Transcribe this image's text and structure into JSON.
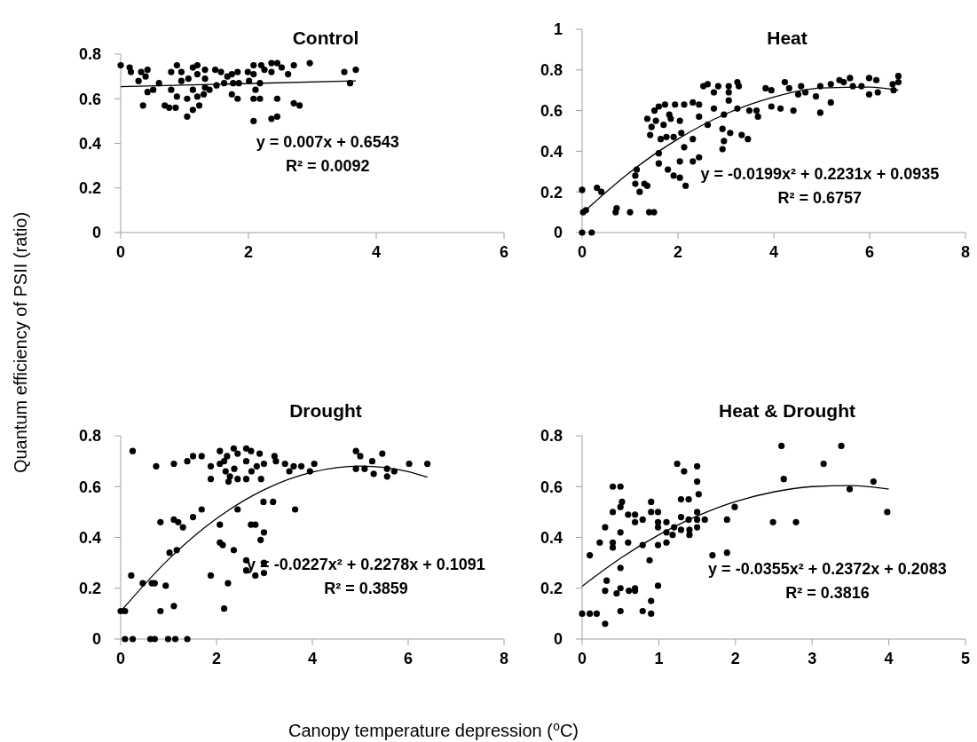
{
  "chart_data": [
    {
      "type": "scatter",
      "title": "Control",
      "ylabel": "Quantum efficiency of PSII (ratio)",
      "xlim": [
        0,
        6
      ],
      "xticks": [
        0,
        2,
        4,
        6
      ],
      "ylim": [
        0,
        0.8
      ],
      "yticks": [
        0,
        0.2,
        0.4,
        0.6,
        0.8
      ],
      "annotations": [
        "y = 0.007x + 0.6543",
        "R² = 0.0092"
      ],
      "series": [
        {
          "marker": "circle",
          "color": "#000000",
          "x": [
            0,
            0.14,
            0.16,
            0.32,
            0.42,
            0.28,
            0.39,
            0.35,
            0.42,
            0.51,
            0.6,
            0.69,
            0.76,
            0.86,
            0.79,
            0.88,
            0.79,
            0.88,
            0.95,
            0.95,
            1.04,
            1.04,
            1.06,
            1.13,
            1.2,
            1.13,
            1.2,
            1.13,
            1.23,
            1.2,
            1.32,
            1.32,
            1.32,
            1.3,
            1.39,
            1.48,
            1.57,
            1.5,
            1.62,
            1.67,
            1.74,
            1.83,
            1.83,
            1.74,
            1.85,
            1.76,
            1.99,
            2.01,
            2.08,
            2.08,
            2.11,
            2.08,
            2.18,
            2.08,
            2.18,
            2.2,
            2.25,
            2.36,
            2.36,
            2.45,
            2.36,
            2.45,
            2.52,
            2.45,
            2.62,
            2.71,
            2.71,
            2.8,
            2.96,
            3.5,
            3.59,
            3.68
          ],
          "values": [
            0.75,
            0.74,
            0.72,
            0.72,
            0.73,
            0.68,
            0.7,
            0.57,
            0.63,
            0.64,
            0.67,
            0.57,
            0.56,
            0.56,
            0.72,
            0.75,
            0.64,
            0.61,
            0.72,
            0.68,
            0.52,
            0.6,
            0.69,
            0.74,
            0.75,
            0.64,
            0.71,
            0.55,
            0.57,
            0.61,
            0.73,
            0.69,
            0.65,
            0.62,
            0.64,
            0.73,
            0.72,
            0.66,
            0.67,
            0.7,
            0.62,
            0.6,
            0.72,
            0.71,
            0.67,
            0.67,
            0.72,
            0.68,
            0.75,
            0.71,
            0.64,
            0.5,
            0.6,
            0.6,
            0.67,
            0.75,
            0.73,
            0.72,
            0.51,
            0.52,
            0.76,
            0.76,
            0.74,
            0.6,
            0.71,
            0.75,
            0.58,
            0.57,
            0.76,
            0.72,
            0.67,
            0.73
          ]
        },
        {
          "type": "line",
          "color": "#000000",
          "x": [
            0,
            3.68
          ],
          "values": [
            0.654,
            0.68
          ]
        }
      ]
    },
    {
      "type": "scatter",
      "title": "Heat",
      "xlim": [
        0,
        8
      ],
      "xticks": [
        0,
        2,
        4,
        6,
        8
      ],
      "ylim": [
        0,
        1
      ],
      "yticks": [
        0,
        0.2,
        0.4,
        0.6,
        0.8,
        1
      ],
      "annotations": [
        "y = -0.0199x² + 0.2231x + 0.0935",
        "R² = 0.6757"
      ],
      "series": [
        {
          "marker": "circle",
          "color": "#000000",
          "x": [
            0,
            0.31,
            0.4,
            0.02,
            0.08,
            0,
            0.2,
            0.7,
            0.72,
            1.0,
            1.4,
            1.5,
            1.2,
            1.11,
            1.14,
            1.11,
            1.3,
            1.36,
            1.36,
            1.45,
            1.42,
            1.51,
            1.54,
            1.6,
            1.64,
            1.6,
            1.6,
            1.73,
            1.7,
            1.76,
            1.82,
            1.85,
            1.79,
            1.91,
            1.91,
            1.94,
            2.04,
            2.04,
            2.04,
            2.07,
            2.13,
            2.13,
            2.16,
            2.31,
            2.31,
            2.31,
            2.44,
            2.44,
            2.44,
            2.53,
            2.62,
            2.62,
            2.75,
            2.75,
            2.84,
            2.93,
            2.96,
            2.93,
            2.96,
            3.06,
            3.06,
            3.06,
            3.09,
            3.24,
            3.27,
            3.24,
            3.33,
            3.46,
            3.49,
            3.64,
            3.67,
            3.83,
            3.95,
            3.95,
            4.14,
            4.23,
            4.32,
            4.41,
            4.51,
            4.57,
            4.66,
            4.88,
            4.97,
            4.97,
            5.19,
            5.19,
            5.37,
            5.46,
            5.59,
            5.65,
            5.83,
            5.99,
            6.14,
            6.17,
            5.99,
            6.48,
            6.6,
            6.6,
            6.5
          ],
          "values": [
            0.21,
            0.22,
            0.2,
            0.1,
            0.11,
            0,
            0,
            0.1,
            0.12,
            0.1,
            0.1,
            0.1,
            0.2,
            0.28,
            0.31,
            0.24,
            0.24,
            0.23,
            0.56,
            0.52,
            0.48,
            0.6,
            0.55,
            0.62,
            0.46,
            0.34,
            0.39,
            0.63,
            0.53,
            0.47,
            0.58,
            0.56,
            0.31,
            0.47,
            0.28,
            0.63,
            0.55,
            0.27,
            0.35,
            0.49,
            0.63,
            0.42,
            0.23,
            0.64,
            0.46,
            0.35,
            0.37,
            0.63,
            0.57,
            0.72,
            0.73,
            0.53,
            0.61,
            0.69,
            0.72,
            0.51,
            0.45,
            0.41,
            0.58,
            0.72,
            0.69,
            0.65,
            0.49,
            0.74,
            0.72,
            0.61,
            0.48,
            0.46,
            0.6,
            0.6,
            0.57,
            0.71,
            0.7,
            0.62,
            0.61,
            0.74,
            0.71,
            0.6,
            0.68,
            0.72,
            0.69,
            0.67,
            0.59,
            0.72,
            0.64,
            0.73,
            0.75,
            0.74,
            0.76,
            0.72,
            0.72,
            0.76,
            0.75,
            0.69,
            0.68,
            0.73,
            0.74,
            0.77,
            0.7
          ]
        },
        {
          "type": "line",
          "color": "#000000",
          "x": [
            0,
            1,
            2,
            3,
            4,
            5,
            6,
            6.6
          ],
          "values": [
            0.094,
            0.297,
            0.46,
            0.584,
            0.667,
            0.711,
            0.716,
            0.7
          ]
        }
      ]
    },
    {
      "type": "scatter",
      "title": "Drought",
      "xlabel": "Canopy temperature depression (⁰C)",
      "xlim": [
        0,
        8
      ],
      "xticks": [
        0,
        2,
        4,
        6,
        8
      ],
      "ylim": [
        0,
        0.8
      ],
      "yticks": [
        0,
        0.2,
        0.4,
        0.6,
        0.8
      ],
      "annotations": [
        "y = -0.0227x² + 0.2278x + 0.1091",
        "R² = 0.3859"
      ],
      "series": [
        {
          "marker": "circle",
          "color": "#000000",
          "x": [
            0,
            0.09,
            0.25,
            0.22,
            0.46,
            0.65,
            0.71,
            0.74,
            0.83,
            0.83,
            0.94,
            1.02,
            1.17,
            1.11,
            1.11,
            1.2,
            1.11,
            1.3,
            1.39,
            1.51,
            1.69,
            1.51,
            1.69,
            1.88,
            1.88,
            1.88,
            2.07,
            2.07,
            2.07,
            2.07,
            2.13,
            2.16,
            2.24,
            2.16,
            2.22,
            2.19,
            2.25,
            2.28,
            2.36,
            2.44,
            2.37,
            2.44,
            2.44,
            2.36,
            2.62,
            2.62,
            2.62,
            2.62,
            2.62,
            2.81,
            2.72,
            2.73,
            2.84,
            2.72,
            2.81,
            2.9,
            2.93,
            2.99,
            2.92,
            2.99,
            2.98,
            2.99,
            2.99,
            3.18,
            3.21,
            3.24,
            3.43,
            3.52,
            3.64,
            3.61,
            3.77,
            3.95,
            4.04,
            4.91,
            5.0,
            4.91,
            5.09,
            5.25,
            5.28,
            5.46,
            5.56,
            5.56,
            5.71,
            6.02,
            6.4,
            0.09,
            0.25,
            0.62,
            0.71,
            0.99,
            1.14,
            1.39
          ],
          "values": [
            0.11,
            0.11,
            0.74,
            0.25,
            0.22,
            0.22,
            0.22,
            0.68,
            0.46,
            0.11,
            0.21,
            0.34,
            0.35,
            0.69,
            0.47,
            0.46,
            0.13,
            0.44,
            0.7,
            0.72,
            0.72,
            0.48,
            0.51,
            0.68,
            0.63,
            0.25,
            0.74,
            0.69,
            0.45,
            0.38,
            0.37,
            0.12,
            0.22,
            0.7,
            0.72,
            0.66,
            0.62,
            0.64,
            0.75,
            0.73,
            0.67,
            0.63,
            0.51,
            0.35,
            0.75,
            0.7,
            0.63,
            0.31,
            0.27,
            0.25,
            0.74,
            0.66,
            0.68,
            0.45,
            0.45,
            0.73,
            0.63,
            0.69,
            0.39,
            0.42,
            0.54,
            0.26,
            0.3,
            0.54,
            0.72,
            0.7,
            0.69,
            0.66,
            0.51,
            0.68,
            0.68,
            0.66,
            0.69,
            0.74,
            0.72,
            0.67,
            0.67,
            0.7,
            0.65,
            0.73,
            0.67,
            0.64,
            0.66,
            0.69,
            0.69,
            0,
            0,
            0,
            0,
            0,
            0,
            0
          ]
        },
        {
          "type": "line",
          "color": "#000000",
          "x": [
            0,
            1,
            2,
            3,
            4,
            5,
            6,
            6.4
          ],
          "values": [
            0.109,
            0.314,
            0.474,
            0.588,
            0.657,
            0.681,
            0.659,
            0.637
          ]
        }
      ]
    },
    {
      "type": "scatter",
      "title": "Heat & Drought",
      "xlim": [
        0,
        5
      ],
      "xticks": [
        0,
        1,
        2,
        3,
        4,
        5
      ],
      "ylim": [
        0,
        0.8
      ],
      "yticks": [
        0,
        0.2,
        0.4,
        0.6,
        0.8
      ],
      "annotations": [
        "y = -0.0355x² + 0.2372x + 0.2083",
        "R² = 0.3816"
      ],
      "series": [
        {
          "marker": "circle",
          "color": "#000000",
          "x": [
            0,
            0.1,
            0.19,
            0.1,
            0.23,
            0.3,
            0.3,
            0.3,
            0.32,
            0.4,
            0.5,
            0.4,
            0.5,
            0.52,
            0.4,
            0.4,
            0.5,
            0.5,
            0.45,
            0.5,
            0.5,
            0.6,
            0.6,
            0.61,
            0.69,
            0.69,
            0.69,
            0.69,
            0.79,
            0.79,
            0.79,
            0.88,
            0.9,
            0.9,
            0.9,
            0.9,
            0.99,
            0.99,
            0.99,
            0.99,
            0.99,
            1.1,
            1.1,
            1.1,
            1.18,
            1.2,
            1.24,
            1.33,
            1.29,
            1.29,
            1.29,
            1.39,
            1.39,
            1.4,
            1.4,
            1.5,
            1.5,
            1.52,
            1.5,
            1.5,
            1.5,
            1.6,
            1.7,
            1.89,
            1.89,
            1.99,
            2.49,
            2.6,
            2.63,
            2.79,
            3.15,
            3.38,
            3.49,
            3.8,
            3.98
          ],
          "values": [
            0.1,
            0.1,
            0.1,
            0.33,
            0.38,
            0.44,
            0.06,
            0.19,
            0.23,
            0.6,
            0.6,
            0.5,
            0.52,
            0.54,
            0.38,
            0.36,
            0.42,
            0.28,
            0.18,
            0.2,
            0.11,
            0.49,
            0.38,
            0.19,
            0.49,
            0.46,
            0.2,
            0.19,
            0.47,
            0.37,
            0.11,
            0.31,
            0.54,
            0.5,
            0.15,
            0.1,
            0.5,
            0.46,
            0.44,
            0.37,
            0.21,
            0.46,
            0.42,
            0.38,
            0.41,
            0.44,
            0.69,
            0.66,
            0.55,
            0.48,
            0.43,
            0.55,
            0.47,
            0.43,
            0.41,
            0.68,
            0.62,
            0.57,
            0.5,
            0.47,
            0.44,
            0.47,
            0.33,
            0.34,
            0.47,
            0.52,
            0.46,
            0.76,
            0.63,
            0.46,
            0.69,
            0.76,
            0.59,
            0.62,
            0.5
          ]
        },
        {
          "type": "line",
          "color": "#000000",
          "x": [
            0,
            0.5,
            1,
            1.5,
            2,
            2.5,
            3,
            3.5,
            4
          ],
          "values": [
            0.208,
            0.318,
            0.41,
            0.484,
            0.541,
            0.579,
            0.6,
            0.604,
            0.59
          ]
        }
      ]
    }
  ]
}
